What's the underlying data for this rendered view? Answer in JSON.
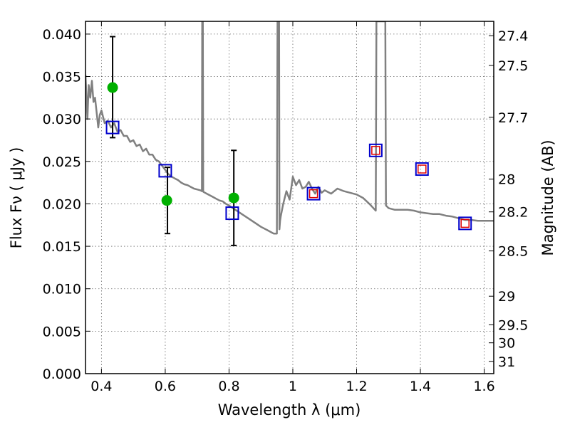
{
  "chart_data": {
    "type": "scatter",
    "title": "",
    "xlabel": "Wavelength  λ (μm)",
    "ylabel": "Flux  Fν  ( μJy )",
    "ylabel_right": "Magnitude (AB)",
    "xlim": [
      0.35,
      1.63
    ],
    "ylim": [
      0.0,
      0.0415
    ],
    "grid": true,
    "x_ticks": [
      0.4,
      0.6,
      0.8,
      1.0,
      1.2,
      1.4,
      1.6
    ],
    "x_tick_labels": [
      "0.4",
      "0.6",
      "0.8",
      "1",
      "1.2",
      "1.4",
      "1.6"
    ],
    "y_ticks": [
      0.0,
      0.005,
      0.01,
      0.015,
      0.02,
      0.025,
      0.03,
      0.035,
      0.04
    ],
    "y_tick_labels": [
      "0.000",
      "0.005",
      "0.010",
      "0.015",
      "0.020",
      "0.025",
      "0.030",
      "0.035",
      "0.040"
    ],
    "mag_ticks": [
      27.4,
      27.5,
      27.7,
      28,
      28.2,
      28.5,
      29,
      29.5,
      30,
      31
    ],
    "mag_tick_labels": [
      "27.4",
      "27.5",
      "27.7",
      "28",
      "28.2",
      "28.5",
      "29",
      "29.5",
      "30",
      "31"
    ],
    "series": [
      {
        "kind": "model_sed_line",
        "color": "#808080",
        "x": [
          0.35,
          0.356,
          0.36,
          0.365,
          0.37,
          0.375,
          0.38,
          0.39,
          0.395,
          0.4,
          0.41,
          0.42,
          0.43,
          0.44,
          0.45,
          0.46,
          0.47,
          0.48,
          0.49,
          0.5,
          0.51,
          0.52,
          0.53,
          0.54,
          0.55,
          0.56,
          0.57,
          0.58,
          0.59,
          0.6,
          0.61,
          0.62,
          0.63,
          0.64,
          0.65,
          0.66,
          0.67,
          0.68,
          0.69,
          0.7,
          0.71,
          0.715,
          0.716,
          0.717,
          0.718,
          0.719,
          0.72,
          0.73,
          0.74,
          0.75,
          0.76,
          0.77,
          0.78,
          0.79,
          0.8,
          0.82,
          0.84,
          0.86,
          0.88,
          0.9,
          0.92,
          0.94,
          0.95,
          0.952,
          0.953,
          0.955,
          0.957,
          0.958,
          0.96,
          0.962,
          0.97,
          0.98,
          0.99,
          1.0,
          1.01,
          1.02,
          1.03,
          1.04,
          1.05,
          1.06,
          1.07,
          1.08,
          1.09,
          1.1,
          1.12,
          1.14,
          1.16,
          1.18,
          1.2,
          1.22,
          1.24,
          1.25,
          1.26,
          1.262,
          1.265,
          1.27,
          1.28,
          1.29,
          1.292,
          1.3,
          1.32,
          1.34,
          1.36,
          1.38,
          1.4,
          1.42,
          1.44,
          1.46,
          1.48,
          1.5,
          1.52,
          1.54,
          1.56,
          1.58,
          1.6,
          1.63
        ],
        "y": [
          0.0352,
          0.03,
          0.034,
          0.0325,
          0.0345,
          0.032,
          0.0325,
          0.029,
          0.0305,
          0.031,
          0.0295,
          0.0298,
          0.029,
          0.0295,
          0.0285,
          0.0287,
          0.028,
          0.028,
          0.0273,
          0.0275,
          0.0268,
          0.027,
          0.0262,
          0.0265,
          0.0258,
          0.0258,
          0.0252,
          0.025,
          0.0245,
          0.024,
          0.0235,
          0.0232,
          0.023,
          0.0228,
          0.0225,
          0.0223,
          0.0222,
          0.022,
          0.0218,
          0.0217,
          0.0216,
          0.0215,
          0.0415,
          0.0415,
          0.0415,
          0.0215,
          0.0214,
          0.0212,
          0.021,
          0.0208,
          0.0206,
          0.0204,
          0.0203,
          0.02,
          0.0198,
          0.0193,
          0.0188,
          0.0183,
          0.0178,
          0.0173,
          0.0169,
          0.0165,
          0.0165,
          0.0415,
          0.0415,
          0.0415,
          0.0415,
          0.017,
          0.018,
          0.0185,
          0.02,
          0.0215,
          0.0205,
          0.0232,
          0.0222,
          0.0228,
          0.0218,
          0.022,
          0.0226,
          0.0218,
          0.0212,
          0.022,
          0.0213,
          0.0216,
          0.0212,
          0.0218,
          0.0215,
          0.0213,
          0.0211,
          0.0207,
          0.02,
          0.0196,
          0.0192,
          0.0415,
          0.0415,
          0.0415,
          0.0415,
          0.0415,
          0.0198,
          0.0195,
          0.0193,
          0.0193,
          0.0193,
          0.0192,
          0.019,
          0.0189,
          0.0188,
          0.0188,
          0.0186,
          0.0185,
          0.0183,
          0.0181,
          0.0181,
          0.018,
          0.018,
          0.018
        ]
      },
      {
        "kind": "observed_points",
        "color": "#00b000",
        "x": [
          0.435,
          0.605,
          0.815
        ],
        "y": [
          0.0337,
          0.0204,
          0.0207
        ],
        "yerr_low": [
          0.0278,
          0.0165,
          0.0151
        ],
        "yerr_high": [
          0.0397,
          0.0243,
          0.0263
        ],
        "errorbar_x": [
          0.435,
          0.607,
          0.815
        ]
      },
      {
        "kind": "model_band_flux_blue",
        "color": "#0000cc",
        "marker": "open-square",
        "x": [
          0.435,
          0.6,
          0.81,
          1.065,
          1.26,
          1.405,
          1.54
        ],
        "y": [
          0.029,
          0.0239,
          0.0189,
          0.0212,
          0.0263,
          0.0241,
          0.0177
        ]
      },
      {
        "kind": "model_band_flux_red",
        "color": "#e00000",
        "marker": "open-square",
        "x": [
          1.065,
          1.26,
          1.405,
          1.54
        ],
        "y": [
          0.0212,
          0.0263,
          0.0241,
          0.0177
        ]
      }
    ]
  }
}
